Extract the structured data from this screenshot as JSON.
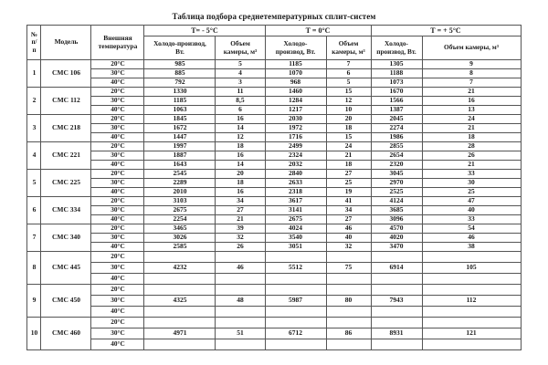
{
  "title": "Таблица подбора среднетемпературных сплит-систем",
  "table": {
    "header": {
      "num": "№\nп/\nп",
      "model": "Модель",
      "ext_temp": "Внешняя\nтемпература",
      "groups": [
        {
          "label": "Т= - 5°С",
          "cols": [
            "Холодо-производ,\nВт.",
            "Объем\nкамеры, м³"
          ]
        },
        {
          "label": "Т = 0°С",
          "cols": [
            "Холодо-\nпроизвод, Вт.",
            "Объем\nкамеры, м³"
          ]
        },
        {
          "label": "Т = + 5°С",
          "cols": [
            "Холодо-\nпроизвод, Вт.",
            "Объем камеры, м³"
          ]
        }
      ]
    },
    "rows": [
      {
        "num": "1",
        "model": "СМС 106",
        "temps": [
          {
            "t": "20°С",
            "v": [
              "985",
              "5",
              "1185",
              "7",
              "1305",
              "9"
            ]
          },
          {
            "t": "30°С",
            "v": [
              "885",
              "4",
              "1070",
              "6",
              "1188",
              "8"
            ]
          },
          {
            "t": "40°С",
            "v": [
              "792",
              "3",
              "968",
              "5",
              "1073",
              "7"
            ]
          }
        ]
      },
      {
        "num": "2",
        "model": "СМС 112",
        "temps": [
          {
            "t": "20°С",
            "v": [
              "1330",
              "11",
              "1460",
              "15",
              "1670",
              "21"
            ]
          },
          {
            "t": "30°С",
            "v": [
              "1185",
              "8,5",
              "1284",
              "12",
              "1566",
              "16"
            ]
          },
          {
            "t": "40°С",
            "v": [
              "1063",
              "6",
              "1217",
              "10",
              "1387",
              "13"
            ]
          }
        ]
      },
      {
        "num": "3",
        "model": "СМС 218",
        "temps": [
          {
            "t": "20°С",
            "v": [
              "1845",
              "16",
              "2030",
              "20",
              "2045",
              "24"
            ]
          },
          {
            "t": "30°С",
            "v": [
              "1672",
              "14",
              "1972",
              "18",
              "2274",
              "21"
            ]
          },
          {
            "t": "40°С",
            "v": [
              "1447",
              "12",
              "1716",
              "15",
              "1986",
              "18"
            ]
          }
        ]
      },
      {
        "num": "4",
        "model": "СМС 221",
        "temps": [
          {
            "t": "20°С",
            "v": [
              "1997",
              "18",
              "2499",
              "24",
              "2855",
              "28"
            ]
          },
          {
            "t": "30°С",
            "v": [
              "1887",
              "16",
              "2324",
              "21",
              "2654",
              "26"
            ]
          },
          {
            "t": "40°С",
            "v": [
              "1643",
              "14",
              "2032",
              "18",
              "2320",
              "21"
            ]
          }
        ]
      },
      {
        "num": "5",
        "model": "СМС 225",
        "temps": [
          {
            "t": "20°С",
            "v": [
              "2545",
              "20",
              "2840",
              "27",
              "3045",
              "33"
            ]
          },
          {
            "t": "30°С",
            "v": [
              "2289",
              "18",
              "2633",
              "25",
              "2970",
              "30"
            ]
          },
          {
            "t": "40°С",
            "v": [
              "2010",
              "16",
              "2318",
              "19",
              "2525",
              "25"
            ]
          }
        ]
      },
      {
        "num": "6",
        "model": "СМС 334",
        "temps": [
          {
            "t": "20°С",
            "v": [
              "3103",
              "34",
              "3617",
              "41",
              "4124",
              "47"
            ]
          },
          {
            "t": "30°С",
            "v": [
              "2675",
              "27",
              "3141",
              "34",
              "3685",
              "40"
            ]
          },
          {
            "t": "40°С",
            "v": [
              "2254",
              "21",
              "2675",
              "27",
              "3096",
              "33"
            ]
          }
        ]
      },
      {
        "num": "7",
        "model": "СМС 340",
        "temps": [
          {
            "t": "20°С",
            "v": [
              "3465",
              "39",
              "4024",
              "46",
              "4570",
              "54"
            ]
          },
          {
            "t": "30°С",
            "v": [
              "3026",
              "32",
              "3540",
              "40",
              "4020",
              "46"
            ]
          },
          {
            "t": "40°С",
            "v": [
              "2585",
              "26",
              "3051",
              "32",
              "3470",
              "38"
            ]
          }
        ]
      },
      {
        "num": "8",
        "model": "СМС 445",
        "temps": [
          {
            "t": "20°С",
            "v": [
              "",
              "",
              "",
              "",
              "",
              ""
            ]
          },
          {
            "t": "30°С",
            "v": [
              "4232",
              "46",
              "5512",
              "75",
              "6914",
              "105"
            ]
          },
          {
            "t": "40°С",
            "v": [
              "",
              "",
              "",
              "",
              "",
              ""
            ]
          }
        ]
      },
      {
        "num": "9",
        "model": "СМС 450",
        "temps": [
          {
            "t": "20°С",
            "v": [
              "",
              "",
              "",
              "",
              "",
              ""
            ]
          },
          {
            "t": "30°С",
            "v": [
              "4325",
              "48",
              "5987",
              "80",
              "7943",
              "112"
            ]
          },
          {
            "t": "40°С",
            "v": [
              "",
              "",
              "",
              "",
              "",
              ""
            ]
          }
        ]
      },
      {
        "num": "10",
        "model": "СМС 460",
        "temps": [
          {
            "t": "20°С",
            "v": [
              "",
              "",
              "",
              "",
              "",
              ""
            ]
          },
          {
            "t": "30°С",
            "v": [
              "4971",
              "51",
              "6712",
              "86",
              "8931",
              "121"
            ]
          },
          {
            "t": "40°С",
            "v": [
              "",
              "",
              "",
              "",
              "",
              ""
            ]
          }
        ]
      }
    ]
  }
}
